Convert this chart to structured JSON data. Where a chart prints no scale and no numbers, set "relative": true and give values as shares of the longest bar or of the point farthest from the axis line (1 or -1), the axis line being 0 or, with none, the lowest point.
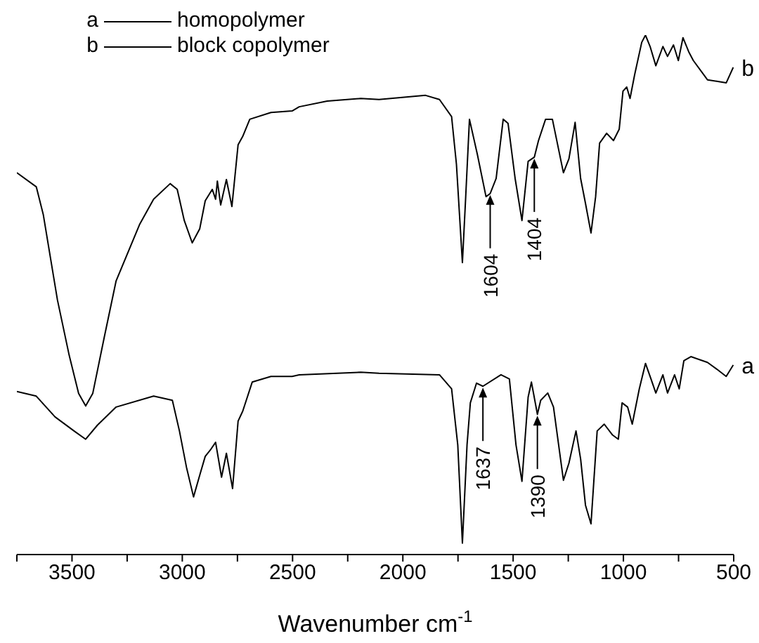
{
  "chart_data": {
    "type": "line",
    "relative": true,
    "xlabel": "Wavenumber cm$^{-1}$",
    "xlim": [
      3750,
      500
    ],
    "xticks": [
      {
        "value": 3750,
        "label": null
      },
      3500,
      {
        "value": 3250,
        "label": null
      },
      3000,
      {
        "value": 2750,
        "label": null
      },
      2500,
      {
        "value": 2250,
        "label": null
      },
      2000,
      {
        "value": 1750,
        "label": null
      },
      1500,
      {
        "value": 1250,
        "label": null
      },
      1000,
      {
        "value": 750,
        "label": null
      },
      500
    ],
    "legend": "top left",
    "marker": "none",
    "line_style": "solid",
    "series": [
      {
        "name": "homopolymer",
        "color": "#000000",
        "x": [
          3750,
          3662,
          3577,
          3491,
          3438,
          3385,
          3300,
          3130,
          3045,
          3013,
          2981,
          2949,
          2918,
          2896,
          2870,
          2849,
          2822,
          2800,
          2772,
          2747,
          2726,
          2683,
          2598,
          2502,
          2470,
          2191,
          2108,
          1834,
          1779,
          1751,
          1730,
          1709,
          1694,
          1666,
          1637,
          1555,
          1517,
          1487,
          1460,
          1432,
          1417,
          1390,
          1375,
          1343,
          1317,
          1272,
          1247,
          1215,
          1194,
          1172,
          1147,
          1119,
          1087,
          1049,
          1023,
          1006,
          981,
          960,
          928,
          900,
          875,
          853,
          821,
          800,
          768,
          747,
          726,
          694,
          619,
          577,
          534,
          502
        ],
        "values": [
          0.314,
          0.305,
          0.265,
          0.238,
          0.222,
          0.249,
          0.284,
          0.305,
          0.297,
          0.238,
          0.168,
          0.111,
          0.157,
          0.189,
          0.203,
          0.216,
          0.149,
          0.195,
          0.127,
          0.257,
          0.276,
          0.332,
          0.343,
          0.343,
          0.346,
          0.351,
          0.349,
          0.346,
          0.319,
          0.211,
          0.022,
          0.211,
          0.292,
          0.33,
          0.324,
          0.346,
          0.338,
          0.211,
          0.141,
          0.303,
          0.332,
          0.27,
          0.297,
          0.311,
          0.284,
          0.143,
          0.176,
          0.238,
          0.184,
          0.095,
          0.059,
          0.238,
          0.251,
          0.23,
          0.222,
          0.292,
          0.284,
          0.251,
          0.319,
          0.368,
          0.338,
          0.311,
          0.346,
          0.311,
          0.346,
          0.319,
          0.373,
          0.381,
          0.37,
          0.357,
          0.343,
          0.365
        ]
      },
      {
        "name": "block copolymer",
        "color": "#000000",
        "x": [
          3750,
          3662,
          3630,
          3566,
          3513,
          3470,
          3438,
          3406,
          3353,
          3300,
          3194,
          3130,
          3055,
          3023,
          2991,
          2955,
          2921,
          2896,
          2864,
          2849,
          2841,
          2826,
          2800,
          2775,
          2747,
          2726,
          2694,
          2598,
          2502,
          2470,
          2343,
          2191,
          2108,
          1897,
          1834,
          1779,
          1757,
          1730,
          1715,
          1698,
          1662,
          1623,
          1604,
          1577,
          1545,
          1523,
          1491,
          1460,
          1432,
          1404,
          1385,
          1353,
          1322,
          1272,
          1247,
          1219,
          1194,
          1172,
          1147,
          1126,
          1108,
          1076,
          1045,
          1019,
          1002,
          985,
          970,
          949,
          917,
          900,
          879,
          853,
          821,
          800,
          773,
          751,
          730,
          704,
          683,
          619,
          577,
          534,
          502
        ],
        "values": [
          0.735,
          0.708,
          0.654,
          0.49,
          0.384,
          0.31,
          0.286,
          0.31,
          0.42,
          0.527,
          0.635,
          0.684,
          0.714,
          0.703,
          0.643,
          0.6,
          0.627,
          0.681,
          0.703,
          0.684,
          0.719,
          0.673,
          0.722,
          0.67,
          0.789,
          0.805,
          0.838,
          0.851,
          0.854,
          0.862,
          0.873,
          0.878,
          0.876,
          0.884,
          0.876,
          0.843,
          0.751,
          0.562,
          0.689,
          0.838,
          0.77,
          0.689,
          0.695,
          0.724,
          0.838,
          0.83,
          0.724,
          0.643,
          0.757,
          0.765,
          0.797,
          0.838,
          0.838,
          0.735,
          0.762,
          0.832,
          0.724,
          0.676,
          0.619,
          0.689,
          0.792,
          0.811,
          0.797,
          0.819,
          0.892,
          0.9,
          0.878,
          0.924,
          0.986,
          1.0,
          0.978,
          0.941,
          0.978,
          0.959,
          0.981,
          0.951,
          0.995,
          0.968,
          0.951,
          0.914,
          0.911,
          0.908,
          0.938
        ]
      }
    ],
    "annotations": [
      {
        "text": "a",
        "x": 502,
        "y": 0.365
      },
      {
        "text": "b",
        "x": 502,
        "y": 0.938
      },
      {
        "text": "1604",
        "x": 1604,
        "y": 0.695
      },
      {
        "text": "1404",
        "x": 1404,
        "y": 0.765
      },
      {
        "text": "1637",
        "x": 1637,
        "y": 0.324
      },
      {
        "text": "1390",
        "x": 1390,
        "y": 0.27
      }
    ]
  }
}
